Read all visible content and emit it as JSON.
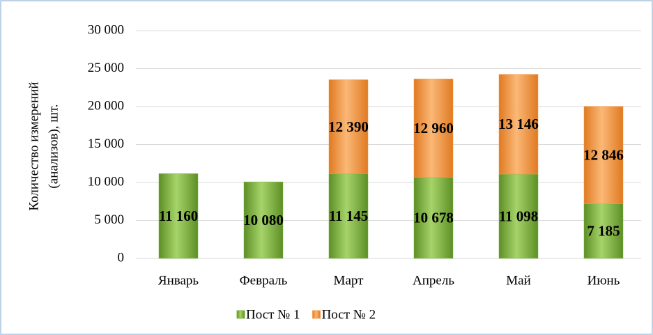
{
  "chart_data": {
    "type": "stacked-bar",
    "ylabel": [
      "Количество измерений",
      "(анализов), шт."
    ],
    "categories": [
      "Январь",
      "Февраль",
      "Март",
      "Апрель",
      "Май",
      "Июнь"
    ],
    "series": [
      {
        "name": "Пост № 1",
        "color": "#7fb33e",
        "values": [
          11160,
          10080,
          11145,
          10678,
          11098,
          7185
        ],
        "value_labels": [
          "11 160",
          "10 080",
          "11 145",
          "10 678",
          "11 098",
          "7 185"
        ]
      },
      {
        "name": "Пост № 2",
        "color": "#f59a4a",
        "values": [
          null,
          null,
          12390,
          12960,
          13146,
          12846
        ],
        "value_labels": [
          null,
          null,
          "12 390",
          "12 960",
          "13 146",
          "12 846"
        ]
      }
    ],
    "ylim": [
      0,
      30000
    ],
    "yticks": [
      0,
      {
        "value": 5000,
        "label": "5 000"
      },
      {
        "value": 10000,
        "label": "10 000"
      },
      {
        "value": 15000,
        "label": "15 000"
      },
      {
        "value": 20000,
        "label": "20 000"
      },
      {
        "value": 25000,
        "label": "25 000"
      },
      {
        "value": 30000,
        "label": "30 000"
      }
    ],
    "grid": true
  }
}
